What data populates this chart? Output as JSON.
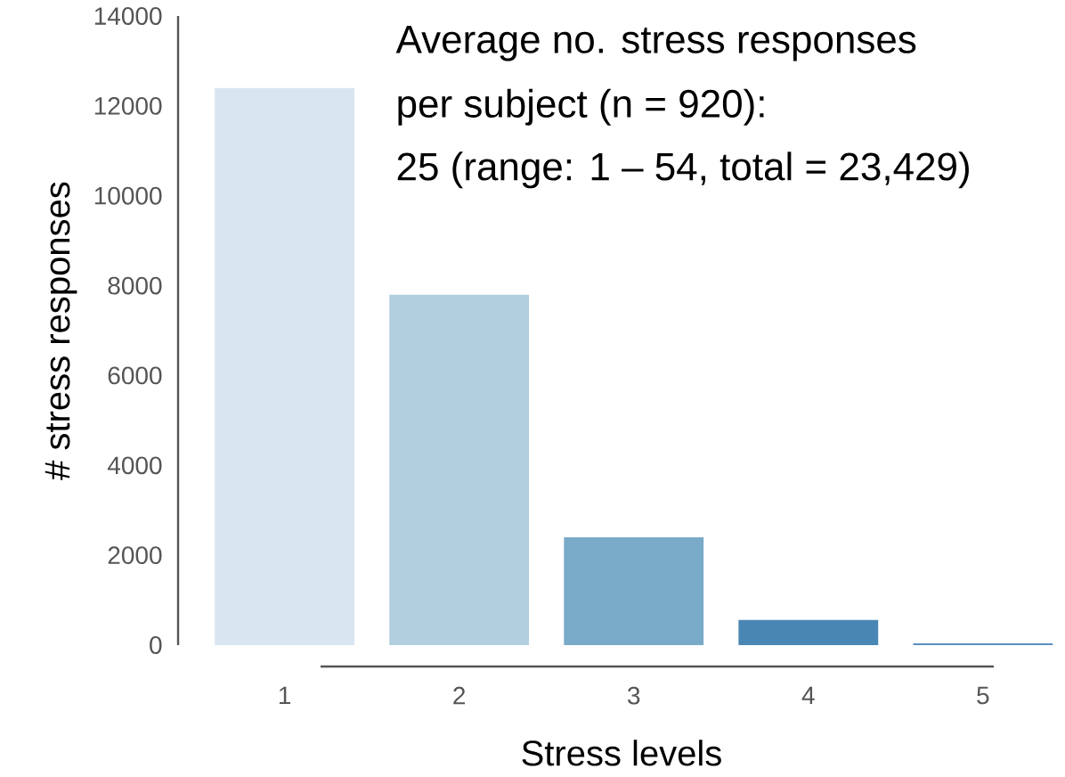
{
  "chart_data": {
    "type": "bar",
    "xlabel": "Stress levels",
    "ylabel": "# stress responses",
    "annotations": [
      "Average no. stress responses",
      "per subject (n = 920):",
      "25 (range: 1 – 54, total = 23,429)"
    ],
    "categories": [
      "1",
      "2",
      "3",
      "4",
      "5"
    ],
    "values": [
      12400,
      7800,
      2400,
      560,
      40
    ],
    "colors": [
      "#d9e6f2",
      "#b2cfe0",
      "#79aac8",
      "#4a86b4",
      "#5a90c0"
    ],
    "ylim": [
      0,
      14000
    ],
    "yticks": [
      0,
      2000,
      4000,
      6000,
      8000,
      10000,
      12000,
      14000
    ]
  }
}
